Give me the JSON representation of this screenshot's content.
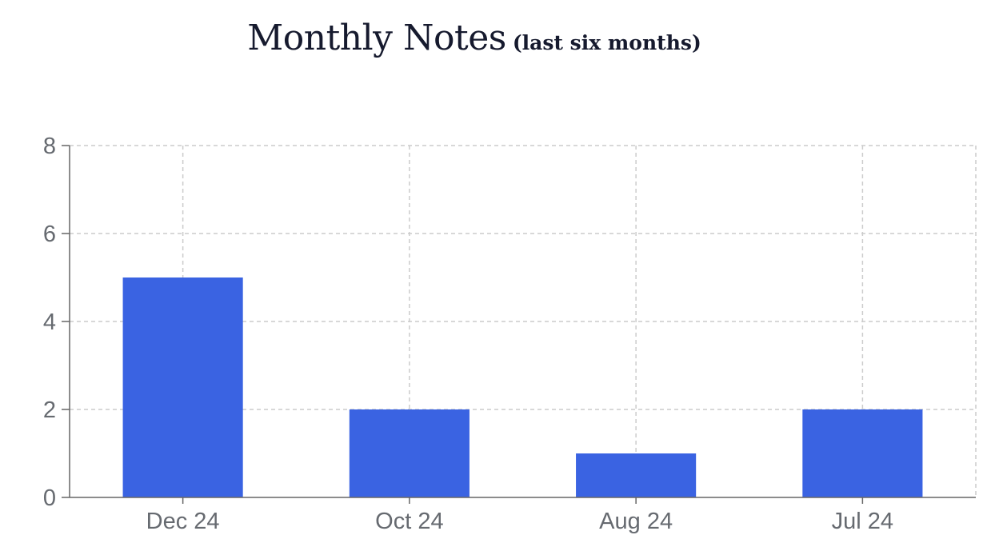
{
  "chart_data": {
    "type": "bar",
    "title": "Monthly Notes",
    "subtitle": "(last six months)",
    "categories": [
      "Dec 24",
      "Oct 24",
      "Aug 24",
      "Jul 24"
    ],
    "values": [
      5,
      2,
      1,
      2
    ],
    "ylim": [
      0,
      8
    ],
    "yticks": [
      0,
      2,
      4,
      6,
      8
    ],
    "grid": true,
    "colors": {
      "bar": "#3a63e2",
      "grid": "#cccccc",
      "axis": "#666666"
    }
  }
}
